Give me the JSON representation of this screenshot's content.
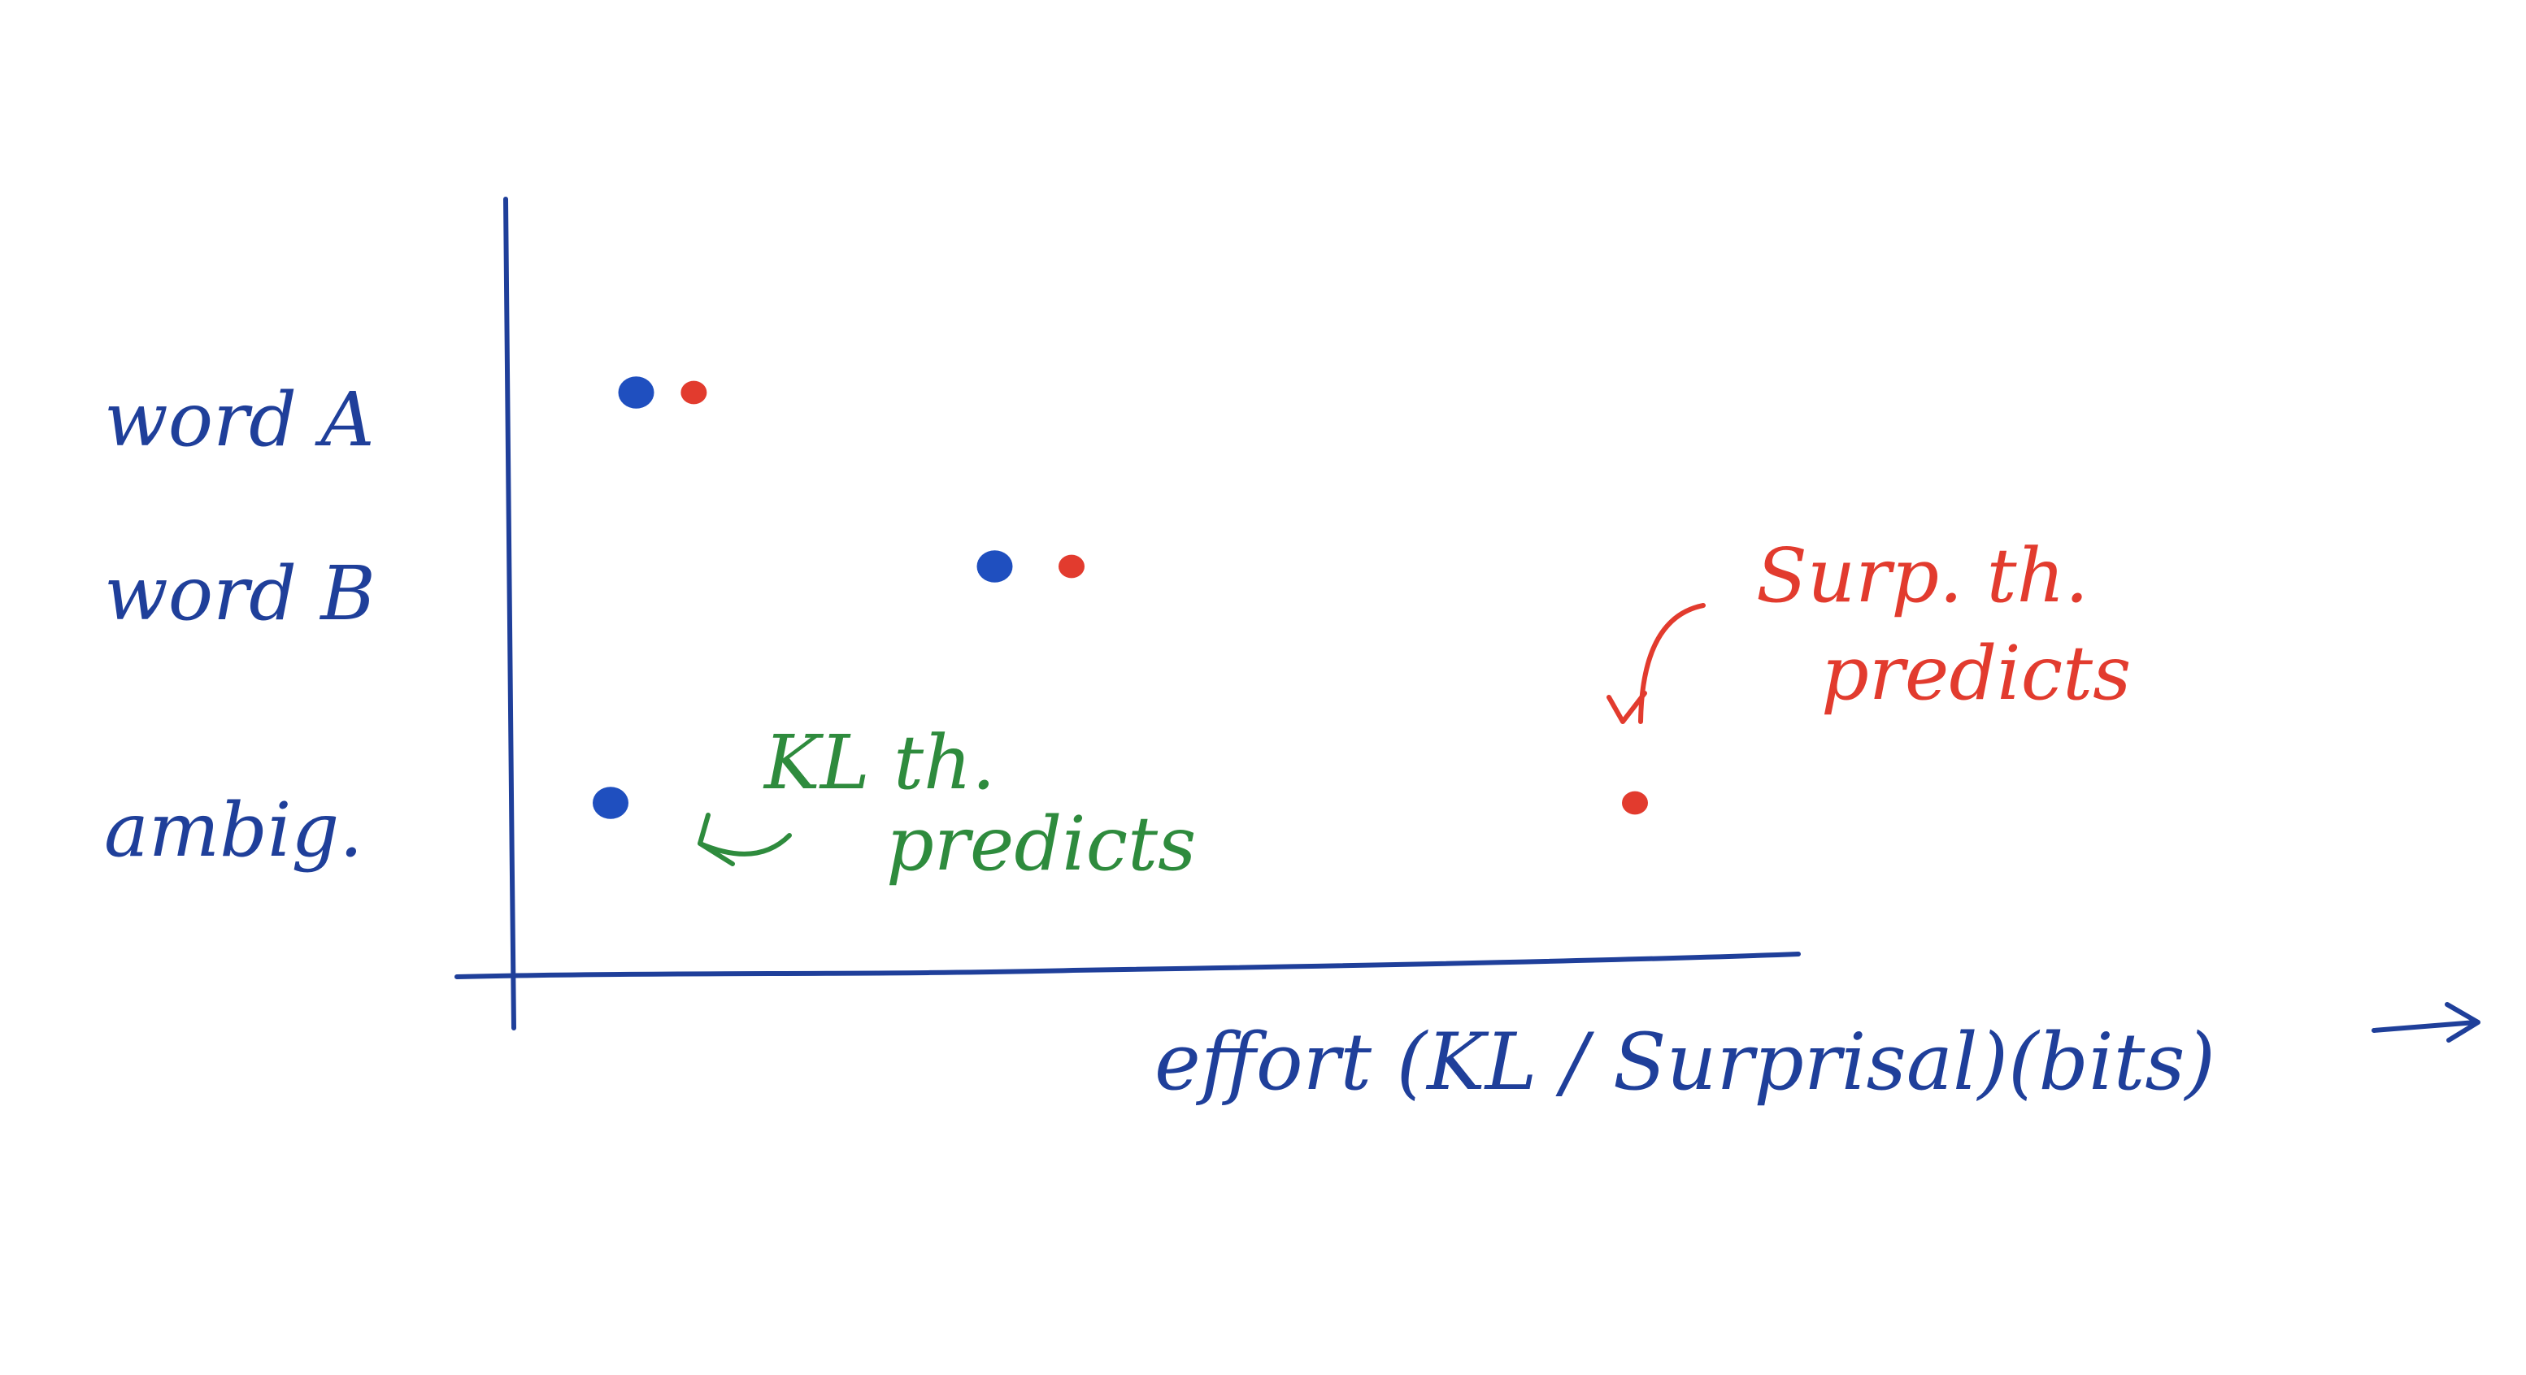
{
  "chart_data": {
    "type": "scatter",
    "title": "",
    "xlabel": "effort (KL / Surprisal)(bits)",
    "ylabel": "",
    "categories": [
      "word A",
      "word B",
      "ambig."
    ],
    "x_axis_has_numbers": false,
    "xlim": [
      0,
      10
    ],
    "grid": false,
    "legend": "none",
    "series": [
      {
        "color": "#1f4fbf",
        "points": [
          {
            "category": "word A",
            "x": 1.0
          },
          {
            "category": "word B",
            "x": 3.8
          },
          {
            "category": "ambig.",
            "x": 0.8
          }
        ]
      },
      {
        "color": "#e23b2e",
        "points": [
          {
            "category": "word A",
            "x": 1.45
          },
          {
            "category": "word B",
            "x": 4.4
          },
          {
            "category": "ambig.",
            "x": 8.8
          }
        ]
      }
    ],
    "annotations": [
      {
        "lines": [
          "KL th.",
          "predicts"
        ],
        "color": "#2e8b3d",
        "points_to_series": 0,
        "points_to_category": "ambig."
      },
      {
        "lines": [
          "Surp. th.",
          "predicts"
        ],
        "color": "#e23b2e",
        "points_to_series": 1,
        "points_to_category": "ambig."
      }
    ]
  },
  "colors": {
    "ink_blue": "#1f3f9a",
    "axis": "#1f3f9a"
  }
}
